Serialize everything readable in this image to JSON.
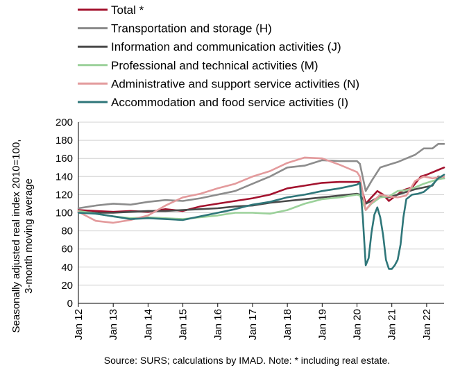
{
  "chart_data": {
    "type": "line",
    "title": "",
    "ylabel": "Seasonally adjusted real index 2010=100,",
    "ylabel_line2": "3-month moving average",
    "xlabel": "",
    "x_start": "2012-01",
    "x_end": "2022-07",
    "x_ticks": [
      {
        "label": "Jan 12",
        "x": "2012-01"
      },
      {
        "label": "Jan 13",
        "x": "2013-01"
      },
      {
        "label": "Jan 14",
        "x": "2014-01"
      },
      {
        "label": "Jan 15",
        "x": "2015-01"
      },
      {
        "label": "Jan 16",
        "x": "2016-01"
      },
      {
        "label": "Jan 17",
        "x": "2017-01"
      },
      {
        "label": "Jan 18",
        "x": "2018-01"
      },
      {
        "label": "Jan 19",
        "x": "2019-01"
      },
      {
        "label": "Jan 20",
        "x": "2020-01"
      },
      {
        "label": "Jan 21",
        "x": "2021-01"
      },
      {
        "label": "Jan 22",
        "x": "2022-01"
      }
    ],
    "y_ticks": [
      "0",
      "20",
      "40",
      "60",
      "80",
      "100",
      "120",
      "140",
      "160",
      "180",
      "200"
    ],
    "ylim": [
      0,
      200
    ],
    "grid": true,
    "legend_position": "top",
    "source": "Source:  SURS; calculations by IMAD. Note: * including real estate.",
    "series": [
      {
        "name": "Total *",
        "color": "#A3122E",
        "points": [
          [
            "2012-01",
            103
          ],
          [
            "2012-07",
            102
          ],
          [
            "2013-01",
            101
          ],
          [
            "2013-07",
            102
          ],
          [
            "2014-01",
            101
          ],
          [
            "2014-07",
            104
          ],
          [
            "2015-01",
            102
          ],
          [
            "2015-07",
            107
          ],
          [
            "2016-01",
            110
          ],
          [
            "2016-07",
            113
          ],
          [
            "2017-01",
            116
          ],
          [
            "2017-07",
            120
          ],
          [
            "2018-01",
            127
          ],
          [
            "2018-07",
            130
          ],
          [
            "2019-01",
            133
          ],
          [
            "2019-07",
            134
          ],
          [
            "2020-01",
            134
          ],
          [
            "2020-02",
            134
          ],
          [
            "2020-04",
            110
          ],
          [
            "2020-06",
            117
          ],
          [
            "2020-08",
            124
          ],
          [
            "2020-10",
            120
          ],
          [
            "2020-12",
            113
          ],
          [
            "2021-02",
            118
          ],
          [
            "2021-05",
            125
          ],
          [
            "2021-08",
            128
          ],
          [
            "2021-11",
            140
          ],
          [
            "2022-01",
            142
          ],
          [
            "2022-04",
            146
          ],
          [
            "2022-07",
            150
          ]
        ]
      },
      {
        "name": "Transportation and storage (H)",
        "color": "#8C8C8C",
        "points": [
          [
            "2012-01",
            105
          ],
          [
            "2012-07",
            108
          ],
          [
            "2013-01",
            110
          ],
          [
            "2013-07",
            109
          ],
          [
            "2014-01",
            112
          ],
          [
            "2014-07",
            114
          ],
          [
            "2015-01",
            113
          ],
          [
            "2015-07",
            116
          ],
          [
            "2016-01",
            120
          ],
          [
            "2016-07",
            124
          ],
          [
            "2017-01",
            132
          ],
          [
            "2017-07",
            140
          ],
          [
            "2018-01",
            150
          ],
          [
            "2018-07",
            152
          ],
          [
            "2019-01",
            158
          ],
          [
            "2019-07",
            157
          ],
          [
            "2020-01",
            157
          ],
          [
            "2020-02",
            154
          ],
          [
            "2020-04",
            124
          ],
          [
            "2020-06",
            135
          ],
          [
            "2020-09",
            150
          ],
          [
            "2020-12",
            153
          ],
          [
            "2021-03",
            156
          ],
          [
            "2021-06",
            160
          ],
          [
            "2021-09",
            164
          ],
          [
            "2021-12",
            171
          ],
          [
            "2022-03",
            171
          ],
          [
            "2022-05",
            176
          ],
          [
            "2022-07",
            176
          ]
        ]
      },
      {
        "name": "Information and communication activities (J)",
        "color": "#4A4A4A",
        "points": [
          [
            "2012-01",
            101
          ],
          [
            "2012-07",
            100
          ],
          [
            "2013-01",
            100
          ],
          [
            "2013-07",
            101
          ],
          [
            "2014-01",
            102
          ],
          [
            "2014-07",
            102
          ],
          [
            "2015-01",
            103
          ],
          [
            "2015-07",
            104
          ],
          [
            "2016-01",
            105
          ],
          [
            "2016-07",
            107
          ],
          [
            "2017-01",
            108
          ],
          [
            "2017-07",
            111
          ],
          [
            "2018-01",
            113
          ],
          [
            "2018-07",
            115
          ],
          [
            "2019-01",
            117
          ],
          [
            "2019-07",
            119
          ],
          [
            "2020-01",
            121
          ],
          [
            "2020-02",
            120
          ],
          [
            "2020-04",
            110
          ],
          [
            "2020-06",
            113
          ],
          [
            "2020-09",
            118
          ],
          [
            "2020-12",
            117
          ],
          [
            "2021-03",
            120
          ],
          [
            "2021-06",
            123
          ],
          [
            "2021-09",
            126
          ],
          [
            "2021-12",
            128
          ],
          [
            "2022-03",
            130
          ],
          [
            "2022-05",
            140
          ],
          [
            "2022-07",
            138
          ]
        ]
      },
      {
        "name": "Professional and technical activities (M)",
        "color": "#9BD19A",
        "points": [
          [
            "2012-01",
            102
          ],
          [
            "2012-07",
            99
          ],
          [
            "2013-01",
            96
          ],
          [
            "2013-07",
            94
          ],
          [
            "2014-01",
            95
          ],
          [
            "2014-07",
            94
          ],
          [
            "2015-01",
            93
          ],
          [
            "2015-07",
            95
          ],
          [
            "2016-01",
            97
          ],
          [
            "2016-07",
            100
          ],
          [
            "2017-01",
            100
          ],
          [
            "2017-07",
            99
          ],
          [
            "2018-01",
            103
          ],
          [
            "2018-07",
            110
          ],
          [
            "2019-01",
            115
          ],
          [
            "2019-07",
            117
          ],
          [
            "2020-01",
            120
          ],
          [
            "2020-02",
            119
          ],
          [
            "2020-04",
            103
          ],
          [
            "2020-06",
            110
          ],
          [
            "2020-09",
            117
          ],
          [
            "2020-12",
            118
          ],
          [
            "2021-03",
            124
          ],
          [
            "2021-06",
            125
          ],
          [
            "2021-09",
            128
          ],
          [
            "2021-12",
            132
          ],
          [
            "2022-03",
            135
          ],
          [
            "2022-05",
            137
          ],
          [
            "2022-07",
            138
          ]
        ]
      },
      {
        "name": "Administrative and support service activities (N)",
        "color": "#E39A9C",
        "points": [
          [
            "2012-01",
            101
          ],
          [
            "2012-07",
            91
          ],
          [
            "2013-01",
            89
          ],
          [
            "2013-07",
            92
          ],
          [
            "2014-01",
            97
          ],
          [
            "2014-07",
            108
          ],
          [
            "2015-01",
            117
          ],
          [
            "2015-07",
            121
          ],
          [
            "2016-01",
            127
          ],
          [
            "2016-07",
            132
          ],
          [
            "2017-01",
            140
          ],
          [
            "2017-07",
            146
          ],
          [
            "2018-01",
            155
          ],
          [
            "2018-07",
            161
          ],
          [
            "2019-01",
            160
          ],
          [
            "2019-07",
            153
          ],
          [
            "2020-01",
            145
          ],
          [
            "2020-02",
            140
          ],
          [
            "2020-04",
            103
          ],
          [
            "2020-06",
            111
          ],
          [
            "2020-09",
            120
          ],
          [
            "2020-12",
            118
          ],
          [
            "2021-03",
            117
          ],
          [
            "2021-06",
            119
          ],
          [
            "2021-09",
            135
          ],
          [
            "2021-12",
            140
          ],
          [
            "2022-03",
            138
          ],
          [
            "2022-05",
            139
          ],
          [
            "2022-07",
            140
          ]
        ]
      },
      {
        "name": "Accommodation and food service activities (I)",
        "color": "#2E7679",
        "points": [
          [
            "2012-01",
            100
          ],
          [
            "2012-07",
            99
          ],
          [
            "2013-01",
            96
          ],
          [
            "2013-07",
            93
          ],
          [
            "2014-01",
            94
          ],
          [
            "2014-07",
            93
          ],
          [
            "2015-01",
            92
          ],
          [
            "2015-07",
            96
          ],
          [
            "2016-01",
            100
          ],
          [
            "2016-07",
            104
          ],
          [
            "2017-01",
            109
          ],
          [
            "2017-07",
            112
          ],
          [
            "2018-01",
            117
          ],
          [
            "2018-07",
            120
          ],
          [
            "2019-01",
            124
          ],
          [
            "2019-07",
            127
          ],
          [
            "2020-01",
            131
          ],
          [
            "2020-02",
            133
          ],
          [
            "2020-03",
            95
          ],
          [
            "2020-04",
            42
          ],
          [
            "2020-05",
            50
          ],
          [
            "2020-06",
            78
          ],
          [
            "2020-07",
            98
          ],
          [
            "2020-08",
            106
          ],
          [
            "2020-09",
            95
          ],
          [
            "2020-10",
            75
          ],
          [
            "2020-11",
            48
          ],
          [
            "2020-12",
            38
          ],
          [
            "2021-01",
            38
          ],
          [
            "2021-02",
            42
          ],
          [
            "2021-03",
            48
          ],
          [
            "2021-04",
            65
          ],
          [
            "2021-05",
            95
          ],
          [
            "2021-06",
            115
          ],
          [
            "2021-08",
            120
          ],
          [
            "2021-10",
            121
          ],
          [
            "2021-12",
            123
          ],
          [
            "2022-03",
            131
          ],
          [
            "2022-05",
            138
          ],
          [
            "2022-07",
            142
          ]
        ]
      }
    ]
  }
}
